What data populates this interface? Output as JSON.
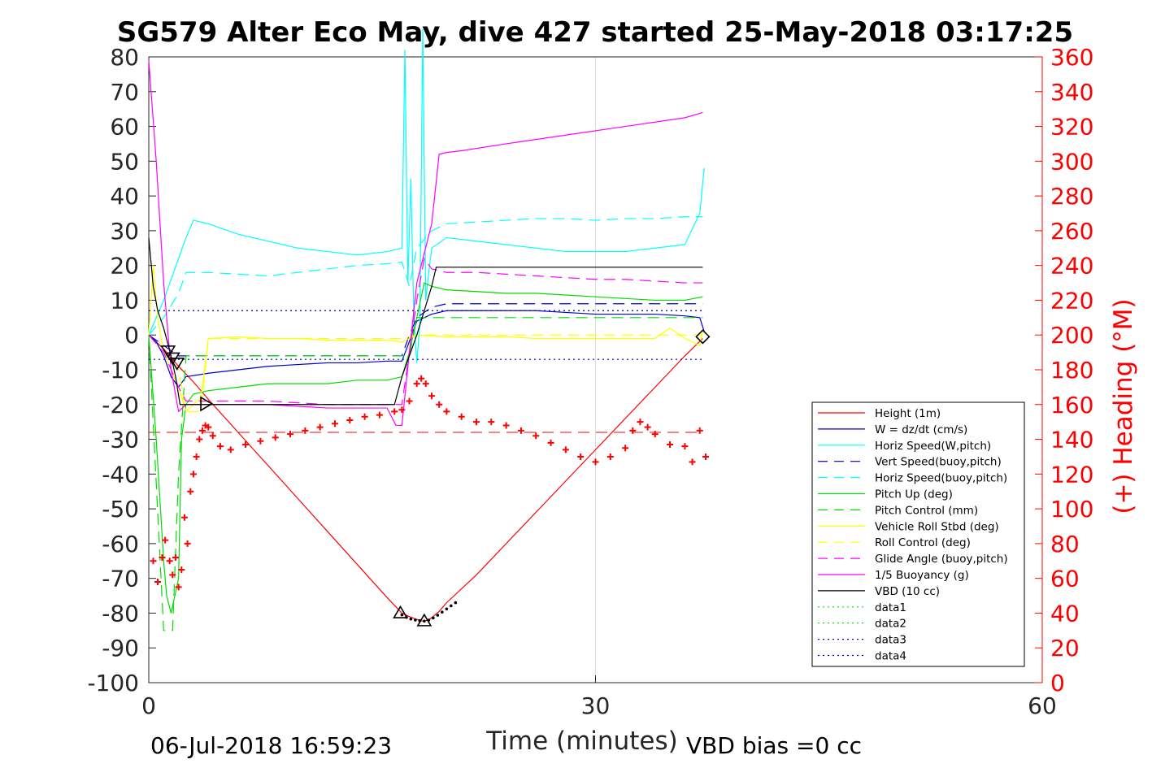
{
  "chart_data": {
    "type": "line",
    "title": "SG579 Alter Eco May, dive 427 started 25-May-2018 03:17:25",
    "xlabel": "Time (minutes)",
    "ylabel": "",
    "y2label": "(+) Heading (°M)",
    "xlim": [
      0,
      60
    ],
    "ylim": [
      -100,
      80
    ],
    "y2lim": [
      0,
      360
    ],
    "xticks": [
      "0",
      "30",
      "60"
    ],
    "yticks": [
      "80",
      "70",
      "60",
      "50",
      "40",
      "30",
      "20",
      "10",
      "0",
      "-10",
      "-20",
      "-30",
      "-40",
      "-50",
      "-60",
      "-70",
      "-80",
      "-90",
      "-100"
    ],
    "y2ticks": [
      "360",
      "340",
      "320",
      "300",
      "280",
      "260",
      "240",
      "220",
      "200",
      "180",
      "160",
      "140",
      "120",
      "100",
      "80",
      "60",
      "40",
      "20",
      "0"
    ],
    "grid": "x-only",
    "legend_position": "right",
    "footer_left": "06-Jul-2018 16:59:23",
    "footer_right": "VBD bias =0 cc",
    "colors": {
      "axis": "#262626",
      "y2axis": "#ff0000",
      "grid": "#dcdcdc"
    },
    "series": [
      {
        "name": "Height (1m)",
        "color": "#ff0000",
        "style": "solid",
        "x": [
          0,
          1,
          2,
          3,
          4,
          6,
          8,
          10,
          12,
          14,
          16,
          17,
          17.5,
          18,
          18.4,
          18.8,
          19.5,
          20,
          22,
          24,
          26,
          28,
          30,
          32,
          34,
          36,
          37.2
        ],
        "y": [
          0,
          -4,
          -9,
          -13.5,
          -18.5,
          -28,
          -37.5,
          -47,
          -56.5,
          -66,
          -75.5,
          -80,
          -81,
          -81.8,
          -82.3,
          -82,
          -79.5,
          -77,
          -69,
          -60,
          -51,
          -42,
          -33,
          -24,
          -15,
          -6,
          -1
        ]
      },
      {
        "name": "W = dz/dt (cm/s)",
        "color": "#0000cc",
        "style": "solid",
        "x": [
          0,
          0.5,
          1,
          1.5,
          2,
          2.5,
          4,
          6,
          8,
          10,
          12,
          14,
          16,
          17,
          17.4,
          18,
          19,
          20,
          22,
          24,
          26,
          28,
          30,
          32,
          34,
          36,
          37,
          37.3
        ],
        "y": [
          0,
          -2,
          -6,
          -12,
          -15,
          -12,
          -11,
          -10,
          -9,
          -8.5,
          -8,
          -8,
          -7.5,
          -7.5,
          -3,
          4,
          6,
          7,
          7,
          7,
          7,
          6.5,
          6,
          6,
          6,
          5.5,
          5,
          1
        ]
      },
      {
        "name": "Horiz Speed(W,pitch)",
        "color": "#00ffff",
        "style": "solid",
        "x": [
          0,
          0.5,
          1,
          1.5,
          2,
          2.5,
          3,
          4,
          6,
          8,
          10,
          12,
          14,
          16,
          17,
          17.2,
          17.4,
          17.6,
          17.8,
          18,
          18.2,
          18.4,
          18.6,
          18.8,
          19,
          20,
          22,
          24,
          26,
          28,
          30,
          32,
          34,
          36,
          37,
          37.3
        ],
        "y": [
          0,
          5,
          10,
          16,
          22,
          28,
          33,
          32,
          29,
          27,
          25,
          24,
          23,
          24,
          25,
          82,
          15,
          45,
          5,
          -8,
          3,
          88,
          10,
          18,
          25,
          28,
          27,
          26,
          25,
          24,
          24,
          24,
          25,
          26,
          35,
          48
        ]
      },
      {
        "name": "Vert Speed(buoy,pitch)",
        "color": "#0000cc",
        "style": "dashed",
        "x": [
          0,
          1,
          2,
          2.5,
          4,
          8,
          12,
          16,
          17,
          17.5,
          18,
          19,
          20,
          24,
          28,
          32,
          36,
          37.2
        ],
        "y": [
          0,
          -3,
          -6,
          -6,
          -6,
          -6,
          -6,
          -6,
          -6,
          0,
          5,
          8,
          9,
          9,
          9,
          9,
          9,
          9
        ]
      },
      {
        "name": "Horiz Speed(buoy,pitch)",
        "color": "#00ffff",
        "style": "dashed",
        "x": [
          0,
          1,
          2,
          2.5,
          4,
          6,
          8,
          10,
          12,
          14,
          16,
          17,
          17.5,
          18,
          19,
          20,
          22,
          24,
          26,
          28,
          30,
          32,
          34,
          36,
          37.2
        ],
        "y": [
          0,
          5,
          12,
          18,
          18,
          17.5,
          17,
          18,
          19,
          20,
          20.5,
          21,
          14,
          25,
          30,
          32,
          32.5,
          33,
          33.5,
          33.5,
          33,
          33.5,
          33.5,
          34,
          34
        ]
      },
      {
        "name": "Pitch Up (deg)",
        "color": "#00dd00",
        "style": "solid",
        "x": [
          0,
          0.5,
          1,
          1.2,
          1.5,
          2,
          2.2,
          2.5,
          3,
          4,
          6,
          8,
          10,
          12,
          14,
          16,
          17,
          17.5,
          18,
          18.5,
          19,
          20,
          22,
          24,
          26,
          28,
          30,
          32,
          34,
          36,
          37.2
        ],
        "y": [
          0,
          -30,
          -65,
          -75,
          -80,
          -70,
          -30,
          -20,
          -17,
          -16,
          -15,
          -14,
          -14,
          -14,
          -13,
          -13,
          -12,
          -5,
          5,
          15,
          14,
          13,
          12.5,
          12,
          12,
          11.5,
          11,
          10.5,
          10,
          10,
          11
        ]
      },
      {
        "name": "Pitch Control (mm)",
        "color": "#00dd00",
        "style": "dashed",
        "x": [
          0,
          1,
          1.2,
          1.3,
          1.6,
          2,
          2.5,
          4,
          8,
          12,
          16,
          17,
          17.5,
          18,
          19,
          24,
          30,
          36,
          37.2
        ],
        "y": [
          0,
          -85,
          -85,
          -85,
          -85,
          -40,
          -6,
          -6,
          -6,
          -6,
          -6,
          -6,
          -6,
          5,
          5,
          5,
          5,
          5,
          5
        ]
      },
      {
        "name": "Vehicle Roll Stbd (deg)",
        "color": "#ffff00",
        "style": "solid",
        "x": [
          0,
          0.3,
          0.6,
          1,
          1.5,
          2,
          2.5,
          3,
          3.5,
          4,
          6,
          8,
          10,
          12,
          14,
          16,
          17,
          17.5,
          18,
          20,
          22,
          24,
          26,
          28,
          30,
          32,
          34,
          35,
          36,
          37,
          37.2
        ],
        "y": [
          0,
          20,
          5,
          -5,
          -10,
          -15,
          -22,
          -20,
          -18,
          -1,
          -0.5,
          -1,
          -1,
          -1.5,
          -1.5,
          -1.5,
          -2,
          -1,
          0,
          -0.5,
          -0.5,
          -0.5,
          -1,
          -1,
          -1,
          -1,
          -1,
          2,
          -1,
          -3,
          1
        ]
      },
      {
        "name": "Roll Control (deg)",
        "color": "#ffff00",
        "style": "dashed",
        "x": [
          0,
          1,
          2,
          2.5,
          3.5,
          4,
          8,
          12,
          16,
          17,
          18,
          20,
          24,
          28,
          32,
          36,
          37.2
        ],
        "y": [
          0,
          -5,
          -10,
          -22,
          -22,
          -1,
          -1,
          -1,
          -1,
          -1,
          0,
          0,
          0,
          0,
          0,
          0,
          0
        ]
      },
      {
        "name": "Glide Angle (buoy,pitch)",
        "color": "#ff00ff",
        "style": "dashed",
        "x": [
          0,
          1,
          2,
          2.5,
          4,
          8,
          12,
          16,
          17,
          17.5,
          18,
          18.5,
          19,
          20,
          22,
          24,
          26,
          28,
          30,
          32,
          34,
          36,
          37.2
        ],
        "y": [
          0,
          -5,
          -15,
          -19,
          -19,
          -19,
          -20,
          -20,
          -20,
          -5,
          10,
          22,
          19,
          18,
          18,
          17.5,
          17,
          16.5,
          16,
          16,
          15.5,
          15,
          15
        ]
      },
      {
        "name": "1/5 Buoyancy (g)",
        "color": "#ff00ff",
        "style": "solid",
        "x": [
          0,
          0.5,
          1,
          1.5,
          2,
          2.5,
          4,
          8,
          12,
          16,
          16.6,
          17,
          17.5,
          18,
          19,
          19.5,
          20,
          21,
          24,
          28,
          32,
          36,
          37.2
        ],
        "y": [
          79,
          50,
          15,
          -10,
          -22,
          -20,
          -20,
          -20,
          -21,
          -21,
          -26,
          -26,
          -5,
          15,
          32,
          52,
          52.5,
          53,
          55,
          57.5,
          60,
          62.5,
          64
        ]
      },
      {
        "name": "VBD (10 cc)",
        "color": "#000000",
        "style": "solid",
        "x": [
          0,
          0.3,
          0.6,
          1,
          1.5,
          1.8,
          2.1,
          2.5,
          4,
          8,
          12,
          16,
          16.5,
          17,
          18,
          19,
          19.3,
          20,
          24,
          28,
          32,
          36,
          37.2
        ],
        "y": [
          28,
          14,
          7,
          2,
          -6,
          -12,
          -20,
          -20,
          -20,
          -20,
          -20,
          -20,
          -20,
          -12,
          0,
          14,
          19.5,
          19.5,
          19.5,
          19.5,
          19.5,
          19.5,
          19.5
        ]
      },
      {
        "name": "data1",
        "color": "#00dd00",
        "style": "dotted",
        "x": [],
        "y": []
      },
      {
        "name": "data2",
        "color": "#00dd00",
        "style": "dotted",
        "x": [],
        "y": []
      },
      {
        "name": "data3",
        "color": "#0000cc",
        "style": "dotted",
        "x": [
          0,
          37.2
        ],
        "y": [
          7,
          7
        ]
      },
      {
        "name": "data4",
        "color": "#0000cc",
        "style": "dotted",
        "x": [
          0,
          37.2
        ],
        "y": [
          -7,
          -7
        ]
      }
    ],
    "reference_line": {
      "color": "#ff0000",
      "style": "dashed",
      "x": [
        0,
        37.2
      ],
      "y": [
        -28,
        -28
      ]
    },
    "heading_points": {
      "color": "#ff0000",
      "axis": "y2",
      "x": [
        0.3,
        0.6,
        0.9,
        1.1,
        1.4,
        1.6,
        1.8,
        2.0,
        2.2,
        2.4,
        2.6,
        2.8,
        3.0,
        3.2,
        3.4,
        3.6,
        3.8,
        4.0,
        4.3,
        4.8,
        5.5,
        6.5,
        7.5,
        8.5,
        9.5,
        10.5,
        11.5,
        12.5,
        13.5,
        14.5,
        15.5,
        16.5,
        17.0,
        17.5,
        18.0,
        18.3,
        18.6,
        19.0,
        19.5,
        20.0,
        21,
        22,
        23,
        24,
        25,
        26,
        27,
        28,
        29,
        30,
        31,
        32,
        32.5,
        33,
        33.5,
        34,
        35,
        36,
        36.5,
        37.0,
        37.4
      ],
      "y": [
        70,
        58,
        72,
        82,
        70,
        62,
        72,
        55,
        65,
        95,
        80,
        110,
        120,
        130,
        140,
        145,
        148,
        147,
        142,
        136,
        134,
        137,
        139,
        141,
        143,
        145,
        147,
        149,
        151,
        153,
        154,
        156,
        157,
        162,
        172,
        175,
        172,
        165,
        160,
        156,
        153,
        150,
        150,
        148,
        145,
        142,
        138,
        134,
        130,
        127,
        130,
        135,
        145,
        150,
        147,
        143,
        137,
        136,
        127,
        145,
        130
      ]
    },
    "markers": {
      "color": "#000000",
      "triangle_up": [
        {
          "x": 16.9,
          "y": -80
        },
        {
          "x": 18.5,
          "y": -82.3
        }
      ],
      "triangle_down": [
        {
          "x": 1.3,
          "y": -4.5
        },
        {
          "x": 1.6,
          "y": -6.5
        },
        {
          "x": 1.9,
          "y": -8
        }
      ],
      "triangle_right": [
        {
          "x": 3.8,
          "y": -19.8
        }
      ],
      "diamond": [
        {
          "x": 37.2,
          "y": -0.5
        }
      ],
      "dots": {
        "x": [
          17,
          17.3,
          17.6,
          17.9,
          18.2,
          18.5,
          18.8,
          19.1,
          19.4,
          19.7,
          20.0,
          20.3,
          20.6
        ],
        "y": [
          -80.5,
          -81.2,
          -81.7,
          -82,
          -82.2,
          -82.3,
          -82,
          -81.4,
          -80.6,
          -79.7,
          -78.8,
          -77.9,
          -77
        ]
      }
    }
  }
}
